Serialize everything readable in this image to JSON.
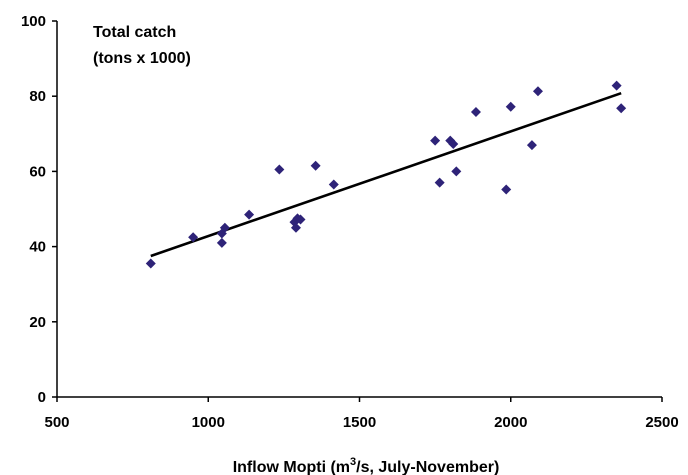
{
  "chart_data": {
    "type": "scatter",
    "title": "",
    "annotation": [
      "Total catch",
      "(tons x 1000)"
    ],
    "xlabel": {
      "prefix": "Inflow Mopti (m",
      "sup": "3",
      "suffix": "/s, July-November)"
    },
    "ylabel": "",
    "xlim": [
      500,
      2500
    ],
    "ylim": [
      0,
      100
    ],
    "x_ticks": [
      500,
      1000,
      1500,
      2000,
      2500
    ],
    "y_ticks": [
      0,
      20,
      40,
      60,
      80,
      100
    ],
    "grid": false,
    "legend": "none",
    "marker": "diamond",
    "marker_color": "#2e2378",
    "trendline_color": "#000000",
    "points": [
      {
        "x": 810,
        "y": 35.5
      },
      {
        "x": 950,
        "y": 42.5
      },
      {
        "x": 1045,
        "y": 41
      },
      {
        "x": 1045,
        "y": 43.5
      },
      {
        "x": 1055,
        "y": 45
      },
      {
        "x": 1135,
        "y": 48.5
      },
      {
        "x": 1235,
        "y": 60.5
      },
      {
        "x": 1285,
        "y": 46.5
      },
      {
        "x": 1290,
        "y": 45
      },
      {
        "x": 1295,
        "y": 47.5
      },
      {
        "x": 1305,
        "y": 47.2
      },
      {
        "x": 1355,
        "y": 61.5
      },
      {
        "x": 1415,
        "y": 56.5
      },
      {
        "x": 1750,
        "y": 68.2
      },
      {
        "x": 1765,
        "y": 57
      },
      {
        "x": 1800,
        "y": 68.2
      },
      {
        "x": 1810,
        "y": 67.3
      },
      {
        "x": 1820,
        "y": 60
      },
      {
        "x": 1885,
        "y": 75.8
      },
      {
        "x": 1985,
        "y": 55.2
      },
      {
        "x": 2000,
        "y": 77.2
      },
      {
        "x": 2070,
        "y": 67
      },
      {
        "x": 2090,
        "y": 81.3
      },
      {
        "x": 2350,
        "y": 82.8
      },
      {
        "x": 2365,
        "y": 76.8
      }
    ],
    "trendline": [
      {
        "x": 810,
        "y": 37.5
      },
      {
        "x": 2365,
        "y": 80.8
      }
    ]
  }
}
